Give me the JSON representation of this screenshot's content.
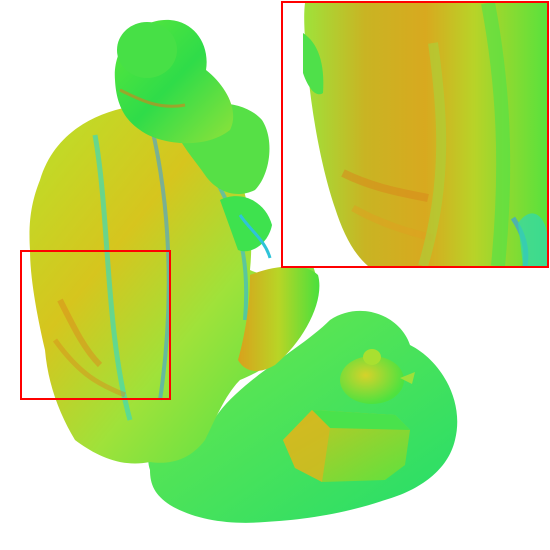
{
  "image": {
    "subject": "normal-map-rendered-statue",
    "colors": {
      "green": "#35e23a",
      "lime": "#9be52f",
      "yellow": "#d8c81d",
      "orange": "#d98a1b",
      "cyan": "#2fd6c0",
      "blue": "#3a7fe0",
      "highlight_box": "#ff0000"
    }
  }
}
